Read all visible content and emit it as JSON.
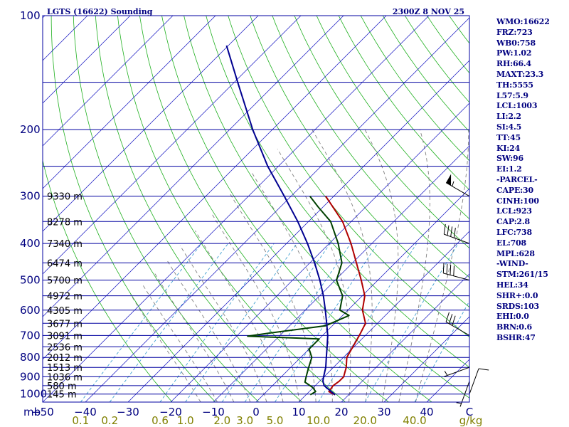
{
  "chart_data": {
    "type": "skew-t log-p sounding",
    "title": "LGTS (16622) Sounding",
    "valid_time": "2300Z  8 NOV 25",
    "pressure_ticks": [
      100,
      200,
      300,
      400,
      500,
      600,
      700,
      800,
      900,
      1000
    ],
    "pressure_unit_label": "mb",
    "pressure_range_hpa": [
      100,
      1050
    ],
    "temperature_ticks": [
      -50,
      -40,
      -30,
      -20,
      -10,
      0,
      10,
      20,
      30,
      40
    ],
    "temperature_unit_label": "C",
    "temperature_range_at_1050": [
      -50,
      50
    ],
    "mixing_ratio_labels": [
      "0.1",
      "0.2",
      "0.6",
      "1.0",
      "2.0",
      "3.0",
      "5.0",
      "10.0",
      "20.0",
      "40.0"
    ],
    "mixing_ratio_values": [
      0.1,
      0.2,
      0.6,
      1.0,
      2.0,
      3.0,
      5.0,
      10.0,
      20.0,
      40.0
    ],
    "mixing_ratio_unit_label": "g/kg",
    "height_labels": [
      {
        "p": 300,
        "text": "9330 m"
      },
      {
        "p": 350,
        "text": "8278 m"
      },
      {
        "p": 400,
        "text": "7340 m"
      },
      {
        "p": 450,
        "text": "6474 m"
      },
      {
        "p": 500,
        "text": "5700 m"
      },
      {
        "p": 550,
        "text": "4972 m"
      },
      {
        "p": 600,
        "text": "4305 m"
      },
      {
        "p": 650,
        "text": "3677 m"
      },
      {
        "p": 700,
        "text": "3091 m"
      },
      {
        "p": 750,
        "text": "2536 m"
      },
      {
        "p": 800,
        "text": "2012 m"
      },
      {
        "p": 850,
        "text": "1513 m"
      },
      {
        "p": 900,
        "text": "1036 m"
      },
      {
        "p": 950,
        "text": "580 m"
      },
      {
        "p": 1000,
        "text": "145 m"
      }
    ],
    "series": [
      {
        "name": "Temperature",
        "color": "#b00000",
        "points": [
          {
            "p": 1004,
            "t": 16.8
          },
          {
            "p": 985,
            "t": 14.6
          },
          {
            "p": 950,
            "t": 14.2
          },
          {
            "p": 925,
            "t": 14.6
          },
          {
            "p": 900,
            "t": 14.6
          },
          {
            "p": 850,
            "t": 13.0
          },
          {
            "p": 800,
            "t": 10.8
          },
          {
            "p": 700,
            "t": 8.6
          },
          {
            "p": 650,
            "t": 7.2
          },
          {
            "p": 600,
            "t": 3.4
          },
          {
            "p": 550,
            "t": 0.6
          },
          {
            "p": 500,
            "t": -3.9
          },
          {
            "p": 450,
            "t": -9.1
          },
          {
            "p": 400,
            "t": -14.9
          },
          {
            "p": 350,
            "t": -22.0
          },
          {
            "p": 300,
            "t": -31.9
          }
        ]
      },
      {
        "name": "Dewpoint",
        "color": "#004000",
        "points": [
          {
            "p": 1004,
            "t": 11.0
          },
          {
            "p": 985,
            "t": 11.5
          },
          {
            "p": 960,
            "t": 9.8
          },
          {
            "p": 930,
            "t": 6.8
          },
          {
            "p": 900,
            "t": 5.8
          },
          {
            "p": 850,
            "t": 4.2
          },
          {
            "p": 800,
            "t": 2.6
          },
          {
            "p": 760,
            "t": 0.0
          },
          {
            "p": 715,
            "t": 0.0
          },
          {
            "p": 703,
            "t": -17.4
          },
          {
            "p": 690,
            "t": -13.0
          },
          {
            "p": 660,
            "t": -1.6
          },
          {
            "p": 620,
            "t": 1.5
          },
          {
            "p": 600,
            "t": -1.9
          },
          {
            "p": 550,
            "t": -4.6
          },
          {
            "p": 500,
            "t": -9.7
          },
          {
            "p": 450,
            "t": -12.5
          },
          {
            "p": 400,
            "t": -17.9
          },
          {
            "p": 350,
            "t": -24.8
          },
          {
            "p": 320,
            "t": -31.2
          },
          {
            "p": 300,
            "t": -35.6
          }
        ]
      },
      {
        "name": "Parcel path",
        "color": "#000090",
        "points": [
          {
            "p": 1004,
            "t": 16.8
          },
          {
            "p": 950,
            "t": 12.1
          },
          {
            "p": 923,
            "t": 10.7
          },
          {
            "p": 900,
            "t": 9.9
          },
          {
            "p": 850,
            "t": 8.2
          },
          {
            "p": 800,
            "t": 6.0
          },
          {
            "p": 750,
            "t": 3.7
          },
          {
            "p": 700,
            "t": 1.2
          },
          {
            "p": 650,
            "t": -1.9
          },
          {
            "p": 600,
            "t": -5.3
          },
          {
            "p": 550,
            "t": -9.1
          },
          {
            "p": 500,
            "t": -13.6
          },
          {
            "p": 450,
            "t": -18.9
          },
          {
            "p": 400,
            "t": -25.1
          },
          {
            "p": 350,
            "t": -32.5
          },
          {
            "p": 300,
            "t": -41.6
          },
          {
            "p": 250,
            "t": -52.5
          },
          {
            "p": 200,
            "t": -64.6
          },
          {
            "p": 150,
            "t": -79.2
          },
          {
            "p": 120,
            "t": -90.4
          }
        ]
      }
    ],
    "wind_barbs": [
      {
        "p": 300,
        "dir": 300,
        "kt": 55
      },
      {
        "p": 400,
        "dir": 290,
        "kt": 40
      },
      {
        "p": 500,
        "dir": 285,
        "kt": 40
      },
      {
        "p": 700,
        "dir": 300,
        "kt": 30
      },
      {
        "p": 850,
        "dir": 250,
        "kt": 5
      },
      {
        "p": 925,
        "dir": 200,
        "kt": 5
      },
      {
        "p": 1000,
        "dir": 20,
        "kt": 10
      }
    ]
  },
  "indices": [
    "WMO:16622",
    "FRZ:723",
    "WB0:758",
    "PW:1.02",
    "RH:66.4",
    "MAXT:23.3",
    "TH:5555",
    "L57:5.9",
    "LCL:1003",
    "LI:2.2",
    "SI:4.5",
    "TT:45",
    "KI:24",
    "SW:96",
    "EI:1.2",
    "-PARCEL-",
    "CAPE:30",
    "CINH:100",
    "LCL:923",
    "CAP:2.8",
    "LFC:738",
    "EL:708",
    "MPL:628",
    "-WIND-",
    "STM:261/15",
    "HEL:34",
    "SHR+:0.0",
    "SRDS:103",
    "EHI:0.0",
    "BRN:0.6",
    "BSHR:47"
  ],
  "colors": {
    "isobar": "#0000a0",
    "isotherm": "#1010c0",
    "dry_adiabat": "#20b020",
    "moist_adiabat": "#808080",
    "mixing_ratio": "#40a0d0",
    "frame": "#0000a0"
  }
}
